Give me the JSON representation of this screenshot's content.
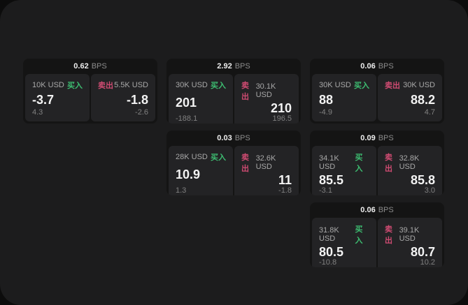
{
  "labels": {
    "bps_unit": "BPS",
    "buy": "买入",
    "sell": "卖出"
  },
  "colors": {
    "buy": "#3dbd71",
    "sell": "#cf4b72",
    "panel": "#1c1c1d",
    "card": "#141414",
    "tile": "#232325"
  },
  "cards": [
    {
      "bps": "0.62",
      "buy": {
        "amount": "10K USD",
        "price": "-3.7",
        "delta": "4.3"
      },
      "sell": {
        "amount": "5.5K USD",
        "price": "-1.8",
        "delta": "-2.6"
      }
    },
    {
      "bps": "2.92",
      "buy": {
        "amount": "30K USD",
        "price": "201",
        "delta": "-188.1"
      },
      "sell": {
        "amount": "30.1K USD",
        "price": "210",
        "delta": "196.5"
      }
    },
    {
      "bps": "0.06",
      "buy": {
        "amount": "30K USD",
        "price": "88",
        "delta": "-4.9"
      },
      "sell": {
        "amount": "30K USD",
        "price": "88.2",
        "delta": "4.7"
      }
    },
    {
      "bps": "0.03",
      "buy": {
        "amount": "28K USD",
        "price": "10.9",
        "delta": "1.3"
      },
      "sell": {
        "amount": "32.6K USD",
        "price": "11",
        "delta": "-1.8"
      }
    },
    {
      "bps": "0.09",
      "buy": {
        "amount": "34.1K USD",
        "price": "85.5",
        "delta": "-3.1"
      },
      "sell": {
        "amount": "32.8K USD",
        "price": "85.8",
        "delta": "3.0"
      }
    },
    {
      "bps": "0.06",
      "buy": {
        "amount": "31.8K USD",
        "price": "80.5",
        "delta": "-10.8"
      },
      "sell": {
        "amount": "39.1K USD",
        "price": "80.7",
        "delta": "10.2"
      }
    }
  ]
}
